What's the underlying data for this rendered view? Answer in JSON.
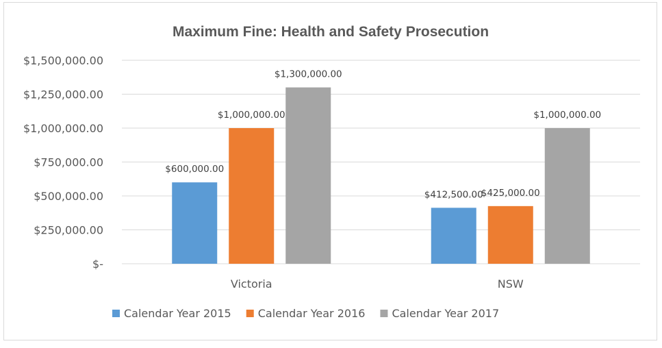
{
  "chart_data": {
    "type": "bar",
    "title": "Maximum Fine: Health and Safety Prosecution",
    "categories": [
      "Victoria",
      "NSW"
    ],
    "series": [
      {
        "name": "Calendar Year 2015",
        "color": "#5b9bd5",
        "values": [
          600000,
          412500
        ],
        "labels": [
          "$600,000.00",
          "$412,500.00"
        ]
      },
      {
        "name": "Calendar Year 2016",
        "color": "#ed7d31",
        "values": [
          1000000,
          425000
        ],
        "labels": [
          "$1,000,000.00",
          "$425,000.00"
        ]
      },
      {
        "name": "Calendar Year 2017",
        "color": "#a5a5a5",
        "values": [
          1300000,
          1000000
        ],
        "labels": [
          "$1,300,000.00",
          "$1,000,000.00"
        ]
      }
    ],
    "ylim": [
      0,
      1500000
    ],
    "yticks": [
      0,
      250000,
      500000,
      750000,
      1000000,
      1250000,
      1500000
    ],
    "ytick_labels": [
      "$-",
      "$250,000.00",
      "$500,000.00",
      "$750,000.00",
      "$1,000,000.00",
      "$1,250,000.00",
      "$1,500,000.00"
    ],
    "grid": true,
    "legend_position": "bottom",
    "gridline_color": "#d9d9d9"
  }
}
